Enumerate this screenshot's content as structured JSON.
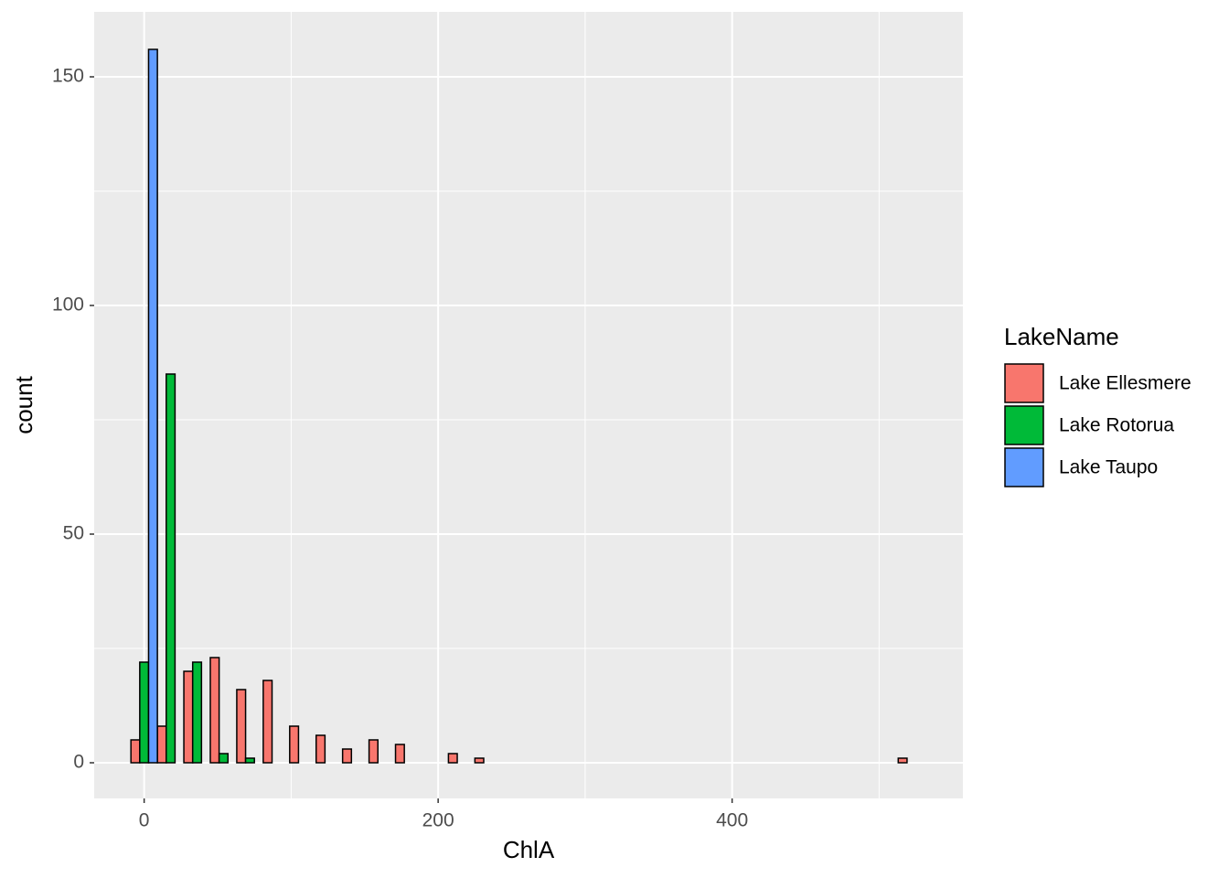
{
  "chart_data": {
    "type": "histogram",
    "x_label": "ChlA",
    "y_label": "count",
    "bins": [
      -9,
      9,
      27,
      45,
      63,
      81,
      99,
      117,
      135,
      153,
      171,
      189,
      207,
      225,
      243,
      261,
      279,
      297,
      315,
      333,
      351,
      369,
      387,
      405,
      423,
      441,
      459,
      477,
      495,
      513,
      531
    ],
    "series": [
      {
        "name": "Lake Ellesmere",
        "color": "#f8766d",
        "values": [
          5,
          8,
          20,
          23,
          16,
          18,
          8,
          6,
          3,
          5,
          4,
          0,
          2,
          1,
          0,
          0,
          0,
          0,
          0,
          0,
          0,
          0,
          0,
          0,
          0,
          0,
          0,
          0,
          0,
          1
        ]
      },
      {
        "name": "Lake Rotorua",
        "color": "#00ba38",
        "values": [
          22,
          85,
          22,
          2,
          1,
          0,
          0,
          0,
          0,
          0,
          0,
          0,
          0,
          0,
          0,
          0,
          0,
          0,
          0,
          0,
          0,
          0,
          0,
          0,
          0,
          0,
          0,
          0,
          0,
          0
        ]
      },
      {
        "name": "Lake Taupo",
        "color": "#619cff",
        "values": [
          156,
          0,
          0,
          0,
          0,
          0,
          0,
          0,
          0,
          0,
          0,
          0,
          0,
          0,
          0,
          0,
          0,
          0,
          0,
          0,
          0,
          0,
          0,
          0,
          0,
          0,
          0,
          0,
          0,
          0
        ]
      }
    ],
    "legend_title": "LakeName",
    "legend": "right",
    "position": "dodge",
    "xlim": [
      -34,
      557
    ],
    "ylim": [
      -7.8,
      164.2
    ],
    "xticks": [
      0,
      200,
      400
    ],
    "yticks": [
      0,
      50,
      100,
      150
    ],
    "minor_xticks": [
      100,
      300,
      500
    ],
    "minor_yticks": [
      25,
      75,
      125
    ],
    "grid": true
  }
}
